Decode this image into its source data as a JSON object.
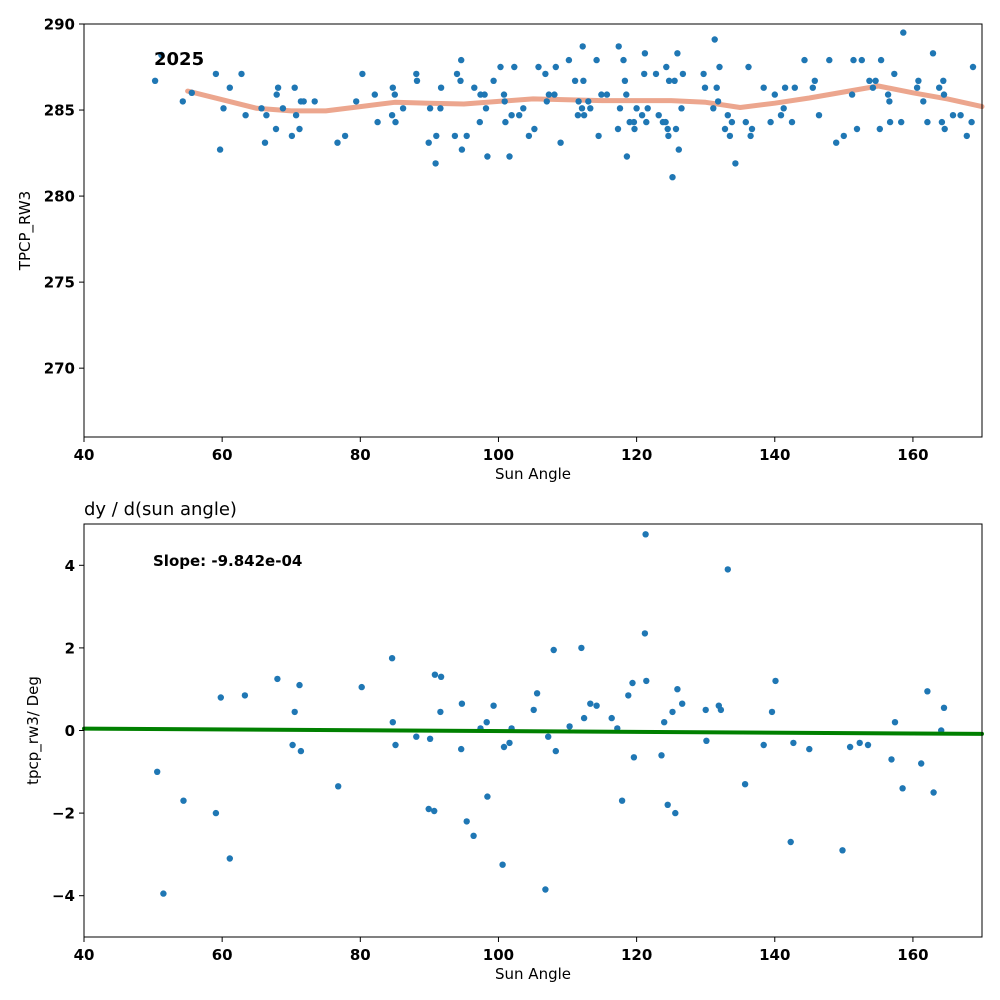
{
  "chart_data": [
    {
      "type": "scatter",
      "title": "",
      "annotation": "2025",
      "xlabel": "Sun Angle",
      "ylabel": "TPCP_RW3",
      "xlim": [
        40,
        170
      ],
      "ylim": [
        266,
        290
      ],
      "xticks": [
        40,
        60,
        80,
        100,
        120,
        140,
        160
      ],
      "yticks": [
        270,
        275,
        280,
        285,
        290
      ],
      "grid": false,
      "colors": {
        "points": "#1f77b4",
        "trend": "#e9967a"
      },
      "points": [
        [
          50.3,
          286.7
        ],
        [
          51.2,
          288.2
        ],
        [
          54.3,
          285.5
        ],
        [
          55.6,
          286.0
        ],
        [
          59.1,
          287.1
        ],
        [
          59.7,
          282.7
        ],
        [
          60.2,
          285.1
        ],
        [
          61.1,
          286.3
        ],
        [
          62.8,
          287.1
        ],
        [
          63.4,
          284.7
        ],
        [
          65.7,
          285.1
        ],
        [
          66.2,
          283.1
        ],
        [
          66.4,
          284.7
        ],
        [
          67.8,
          283.9
        ],
        [
          67.9,
          285.9
        ],
        [
          68.1,
          286.3
        ],
        [
          68.8,
          285.1
        ],
        [
          70.1,
          283.5
        ],
        [
          70.5,
          286.3
        ],
        [
          70.7,
          284.7
        ],
        [
          71.2,
          283.9
        ],
        [
          71.4,
          285.5
        ],
        [
          71.8,
          285.5
        ],
        [
          73.4,
          285.5
        ],
        [
          76.7,
          283.1
        ],
        [
          77.8,
          283.5
        ],
        [
          79.4,
          285.5
        ],
        [
          80.3,
          287.1
        ],
        [
          82.1,
          285.9
        ],
        [
          82.5,
          284.3
        ],
        [
          84.6,
          284.7
        ],
        [
          84.7,
          286.3
        ],
        [
          85.0,
          285.9
        ],
        [
          85.1,
          284.3
        ],
        [
          86.2,
          285.1
        ],
        [
          88.1,
          287.1
        ],
        [
          88.2,
          286.7
        ],
        [
          89.9,
          283.1
        ],
        [
          90.1,
          285.1
        ],
        [
          90.9,
          281.9
        ],
        [
          91.0,
          283.5
        ],
        [
          91.6,
          285.1
        ],
        [
          91.7,
          286.3
        ],
        [
          93.7,
          283.5
        ],
        [
          94.0,
          287.1
        ],
        [
          94.5,
          286.7
        ],
        [
          94.6,
          287.9
        ],
        [
          94.7,
          282.7
        ],
        [
          95.4,
          283.5
        ],
        [
          96.5,
          286.3
        ],
        [
          97.3,
          284.3
        ],
        [
          97.4,
          285.9
        ],
        [
          98.0,
          285.9
        ],
        [
          98.2,
          285.1
        ],
        [
          98.4,
          282.3
        ],
        [
          99.3,
          286.7
        ],
        [
          100.3,
          287.5
        ],
        [
          100.8,
          285.9
        ],
        [
          100.9,
          285.5
        ],
        [
          101.0,
          284.3
        ],
        [
          101.6,
          282.3
        ],
        [
          101.9,
          284.7
        ],
        [
          102.3,
          287.5
        ],
        [
          103.0,
          284.7
        ],
        [
          103.6,
          285.1
        ],
        [
          104.4,
          283.5
        ],
        [
          105.2,
          283.9
        ],
        [
          105.8,
          287.5
        ],
        [
          106.8,
          287.1
        ],
        [
          107.0,
          285.5
        ],
        [
          107.3,
          285.9
        ],
        [
          108.1,
          285.9
        ],
        [
          108.3,
          287.5
        ],
        [
          109.0,
          283.1
        ],
        [
          110.2,
          287.9
        ],
        [
          111.1,
          286.7
        ],
        [
          111.5,
          284.7
        ],
        [
          111.6,
          285.5
        ],
        [
          112.1,
          285.1
        ],
        [
          112.2,
          288.7
        ],
        [
          112.3,
          286.7
        ],
        [
          112.4,
          284.7
        ],
        [
          113.0,
          285.5
        ],
        [
          113.3,
          285.1
        ],
        [
          114.2,
          287.9
        ],
        [
          114.5,
          283.5
        ],
        [
          114.9,
          285.9
        ],
        [
          115.7,
          285.9
        ],
        [
          117.3,
          283.9
        ],
        [
          117.4,
          288.7
        ],
        [
          117.6,
          285.1
        ],
        [
          118.1,
          287.9
        ],
        [
          118.3,
          286.7
        ],
        [
          118.5,
          285.9
        ],
        [
          118.6,
          282.3
        ],
        [
          119.0,
          284.3
        ],
        [
          119.6,
          284.3
        ],
        [
          119.7,
          283.9
        ],
        [
          120.0,
          285.1
        ],
        [
          120.8,
          284.7
        ],
        [
          121.1,
          287.1
        ],
        [
          121.2,
          288.3
        ],
        [
          121.4,
          284.3
        ],
        [
          121.6,
          285.1
        ],
        [
          122.8,
          287.1
        ],
        [
          123.2,
          284.7
        ],
        [
          123.8,
          284.3
        ],
        [
          124.2,
          284.3
        ],
        [
          124.3,
          287.5
        ],
        [
          124.5,
          283.9
        ],
        [
          124.6,
          283.5
        ],
        [
          124.7,
          286.7
        ],
        [
          125.2,
          281.1
        ],
        [
          125.5,
          286.7
        ],
        [
          125.7,
          283.9
        ],
        [
          125.9,
          288.3
        ],
        [
          126.1,
          282.7
        ],
        [
          126.5,
          285.1
        ],
        [
          126.7,
          287.1
        ],
        [
          129.7,
          287.1
        ],
        [
          129.9,
          286.3
        ],
        [
          131.1,
          285.1
        ],
        [
          131.3,
          289.1
        ],
        [
          131.6,
          286.3
        ],
        [
          131.8,
          285.5
        ],
        [
          132.0,
          287.5
        ],
        [
          132.8,
          283.9
        ],
        [
          133.2,
          284.7
        ],
        [
          133.5,
          283.5
        ],
        [
          133.8,
          284.3
        ],
        [
          134.3,
          281.9
        ],
        [
          135.8,
          284.3
        ],
        [
          136.2,
          287.5
        ],
        [
          136.5,
          283.5
        ],
        [
          136.7,
          283.9
        ],
        [
          138.4,
          286.3
        ],
        [
          139.4,
          284.3
        ],
        [
          140.0,
          285.9
        ],
        [
          140.9,
          284.7
        ],
        [
          141.3,
          285.1
        ],
        [
          141.5,
          286.3
        ],
        [
          142.5,
          284.3
        ],
        [
          142.9,
          286.3
        ],
        [
          144.3,
          287.9
        ],
        [
          145.5,
          286.3
        ],
        [
          145.8,
          286.7
        ],
        [
          146.4,
          284.7
        ],
        [
          147.9,
          287.9
        ],
        [
          148.9,
          283.1
        ],
        [
          150.0,
          283.5
        ],
        [
          151.2,
          285.9
        ],
        [
          151.4,
          287.9
        ],
        [
          151.9,
          283.9
        ],
        [
          152.6,
          287.9
        ],
        [
          153.7,
          286.7
        ],
        [
          154.2,
          286.3
        ],
        [
          154.6,
          286.7
        ],
        [
          155.2,
          283.9
        ],
        [
          155.4,
          287.9
        ],
        [
          156.4,
          285.9
        ],
        [
          156.6,
          285.5
        ],
        [
          156.7,
          284.3
        ],
        [
          157.3,
          287.1
        ],
        [
          158.3,
          284.3
        ],
        [
          158.6,
          289.5
        ],
        [
          160.6,
          286.3
        ],
        [
          160.8,
          286.7
        ],
        [
          161.5,
          285.5
        ],
        [
          162.1,
          284.3
        ],
        [
          162.9,
          288.3
        ],
        [
          163.8,
          286.3
        ],
        [
          164.2,
          284.3
        ],
        [
          164.4,
          286.7
        ],
        [
          164.5,
          285.9
        ],
        [
          164.6,
          283.9
        ],
        [
          165.8,
          284.7
        ],
        [
          166.9,
          284.7
        ],
        [
          167.8,
          283.5
        ],
        [
          168.5,
          284.3
        ],
        [
          168.7,
          287.5
        ]
      ],
      "trend": {
        "x": [
          55,
          60,
          65,
          70,
          75,
          80,
          85,
          90,
          95,
          100,
          105,
          110,
          115,
          120,
          125,
          130,
          135,
          140,
          145,
          150,
          155,
          160,
          165,
          170
        ],
        "y": [
          286.1,
          285.6,
          285.1,
          284.95,
          284.95,
          285.2,
          285.45,
          285.4,
          285.35,
          285.5,
          285.65,
          285.6,
          285.55,
          285.55,
          285.55,
          285.45,
          285.15,
          285.4,
          285.7,
          286.05,
          286.4,
          286.0,
          285.65,
          285.2
        ]
      }
    },
    {
      "type": "scatter",
      "title": "dy / d(sun angle)",
      "annotation": "Slope: -9.842e-04",
      "xlabel": "Sun Angle",
      "ylabel": "tpcp_rw3/ Deg",
      "xlim": [
        40,
        170
      ],
      "ylim": [
        -5,
        5
      ],
      "xticks": [
        40,
        60,
        80,
        100,
        120,
        140,
        160
      ],
      "yticks": [
        -4,
        -2,
        0,
        2,
        4
      ],
      "ytick_labels": [
        "−4",
        "−2",
        "0",
        "2",
        "4"
      ],
      "grid": false,
      "colors": {
        "points": "#1f77b4",
        "trend": "#008000"
      },
      "points": [
        [
          50.6,
          -1.0
        ],
        [
          51.5,
          -3.95
        ],
        [
          54.4,
          -1.7
        ],
        [
          59.1,
          -2.0
        ],
        [
          59.8,
          0.8
        ],
        [
          61.1,
          -3.1
        ],
        [
          63.3,
          0.85
        ],
        [
          68.0,
          1.25
        ],
        [
          70.2,
          -0.35
        ],
        [
          70.5,
          0.45
        ],
        [
          71.2,
          1.1
        ],
        [
          71.4,
          -0.5
        ],
        [
          76.8,
          -1.35
        ],
        [
          80.2,
          1.05
        ],
        [
          84.6,
          1.75
        ],
        [
          84.7,
          0.2
        ],
        [
          85.1,
          -0.35
        ],
        [
          88.1,
          -0.15
        ],
        [
          89.9,
          -1.9
        ],
        [
          90.1,
          -0.2
        ],
        [
          90.7,
          -1.95
        ],
        [
          90.8,
          1.35
        ],
        [
          91.6,
          0.45
        ],
        [
          91.7,
          1.3
        ],
        [
          94.6,
          -0.45
        ],
        [
          94.7,
          0.65
        ],
        [
          95.4,
          -2.2
        ],
        [
          96.4,
          -2.55
        ],
        [
          97.4,
          0.05
        ],
        [
          98.3,
          0.2
        ],
        [
          98.4,
          -1.6
        ],
        [
          99.3,
          0.6
        ],
        [
          100.6,
          -3.25
        ],
        [
          100.8,
          -0.4
        ],
        [
          101.6,
          -0.3
        ],
        [
          101.9,
          0.05
        ],
        [
          105.1,
          0.5
        ],
        [
          105.6,
          0.9
        ],
        [
          106.8,
          -3.85
        ],
        [
          107.2,
          -0.15
        ],
        [
          108.0,
          1.95
        ],
        [
          108.3,
          -0.5
        ],
        [
          110.3,
          0.1
        ],
        [
          112.0,
          2.0
        ],
        [
          112.4,
          0.3
        ],
        [
          113.3,
          0.65
        ],
        [
          114.2,
          0.6
        ],
        [
          116.4,
          0.3
        ],
        [
          117.2,
          0.05
        ],
        [
          117.9,
          -1.7
        ],
        [
          118.8,
          0.85
        ],
        [
          119.4,
          1.15
        ],
        [
          119.6,
          -0.65
        ],
        [
          121.2,
          2.35
        ],
        [
          121.3,
          4.75
        ],
        [
          121.4,
          1.2
        ],
        [
          123.6,
          -0.6
        ],
        [
          124.0,
          0.2
        ],
        [
          124.5,
          -1.8
        ],
        [
          125.2,
          0.45
        ],
        [
          125.6,
          -2.0
        ],
        [
          125.9,
          1.0
        ],
        [
          126.6,
          0.65
        ],
        [
          130.0,
          0.5
        ],
        [
          130.1,
          -0.25
        ],
        [
          131.9,
          0.6
        ],
        [
          132.2,
          0.5
        ],
        [
          133.2,
          3.9
        ],
        [
          135.7,
          -1.3
        ],
        [
          138.4,
          -0.35
        ],
        [
          139.6,
          0.45
        ],
        [
          140.1,
          1.2
        ],
        [
          142.3,
          -2.7
        ],
        [
          142.7,
          -0.3
        ],
        [
          145.0,
          -0.45
        ],
        [
          149.8,
          -2.9
        ],
        [
          150.9,
          -0.4
        ],
        [
          152.3,
          -0.3
        ],
        [
          153.5,
          -0.35
        ],
        [
          156.9,
          -0.7
        ],
        [
          157.4,
          0.2
        ],
        [
          158.5,
          -1.4
        ],
        [
          161.2,
          -0.8
        ],
        [
          162.1,
          0.95
        ],
        [
          163.0,
          -1.5
        ],
        [
          164.1,
          0.0
        ],
        [
          164.5,
          0.55
        ]
      ],
      "trend": {
        "x": [
          40,
          170
        ],
        "y": [
          0.045,
          -0.083
        ]
      }
    }
  ]
}
